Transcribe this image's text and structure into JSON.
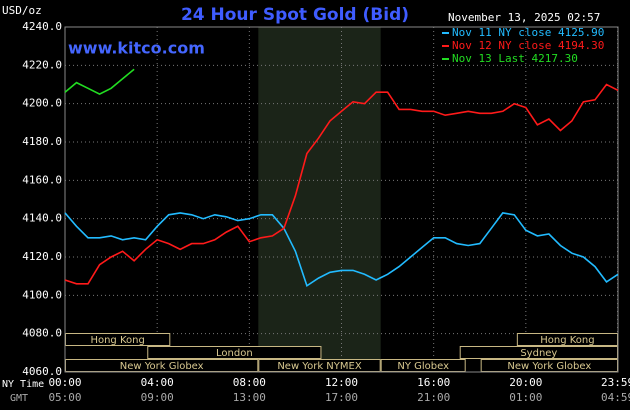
{
  "chart_data": {
    "type": "line",
    "title": "24 Hour Spot Gold (Bid)",
    "unit_label": "USD/oz",
    "timestamp": "November 13, 2025 02:57",
    "watermark": "www.kitco.com",
    "x_axis_labels": [
      "NY Time",
      "GMT"
    ],
    "x": [
      0,
      0.5,
      1,
      1.5,
      2,
      2.5,
      3,
      3.5,
      4,
      4.5,
      5,
      5.5,
      6,
      6.5,
      7,
      7.5,
      8,
      8.5,
      9,
      9.5,
      10,
      10.5,
      11,
      11.5,
      12,
      12.5,
      13,
      13.5,
      14,
      14.5,
      15,
      15.5,
      16,
      16.5,
      17,
      17.5,
      18,
      18.5,
      19,
      19.5,
      20,
      20.5,
      21,
      21.5,
      22,
      22.5,
      23,
      23.5,
      24
    ],
    "series": [
      {
        "name": "Nov 11 NY close 4125.90",
        "color": "#22bbff",
        "values": [
          4143,
          4136,
          4130,
          4130,
          4131,
          4129,
          4130,
          4129,
          4136,
          4142,
          4143,
          4142,
          4140,
          4142,
          4141,
          4139,
          4140,
          4142,
          4142,
          4135,
          4123,
          4105,
          4109,
          4112,
          4113,
          4113,
          4111,
          4108,
          4111,
          4115,
          4120,
          4125,
          4130,
          4130,
          4127,
          4126,
          4127,
          4135,
          4143,
          4142,
          4134,
          4131,
          4132,
          4126,
          4122,
          4120,
          4115,
          4107,
          4111
        ]
      },
      {
        "name": "Nov 12 NY close 4194.30",
        "color": "#ff1a1a",
        "values": [
          4108,
          4106,
          4106,
          4116,
          4120,
          4123,
          4118,
          4124,
          4129,
          4127,
          4124,
          4127,
          4127,
          4129,
          4133,
          4136,
          4128,
          4130,
          4131,
          4135,
          4152,
          4174,
          4182,
          4191,
          4196,
          4201,
          4200,
          4206,
          4206,
          4197,
          4197,
          4196,
          4196,
          4194,
          4195,
          4196,
          4195,
          4195,
          4196,
          4200,
          4198,
          4189,
          4192,
          4186,
          4191,
          4201,
          4202,
          4210,
          4207
        ]
      },
      {
        "name": "Nov 13 Last 4217.30",
        "color": "#22dd22",
        "values": [
          4206,
          4211,
          4208,
          4205,
          4208,
          4213,
          4218,
          null,
          null,
          null,
          null,
          null,
          null,
          null,
          null,
          null,
          null,
          null,
          null,
          null,
          null,
          null,
          null,
          null,
          null,
          null,
          null,
          null,
          null,
          null,
          null,
          null,
          null,
          null,
          null,
          null,
          null,
          null,
          null,
          null,
          null,
          null,
          null,
          null,
          null,
          null,
          null,
          null,
          null
        ]
      }
    ],
    "xlim": [
      0,
      24
    ],
    "xticks": [
      {
        "value": 0,
        "label": "00:00"
      },
      {
        "value": 4,
        "label": "04:00"
      },
      {
        "value": 8,
        "label": "08:00"
      },
      {
        "value": 12,
        "label": "12:00"
      },
      {
        "value": 16,
        "label": "16:00"
      },
      {
        "value": 20,
        "label": "20:00"
      },
      {
        "value": 23.98,
        "label": "23:59"
      }
    ],
    "gmt_labels": [
      "05:00",
      "09:00",
      "13:00",
      "17:00",
      "21:00",
      "01:00",
      "04:59"
    ],
    "ylim": [
      4060,
      4240
    ],
    "yticks": [
      {
        "value": 4060,
        "label": "4060.0"
      },
      {
        "value": 4080,
        "label": "4080.0"
      },
      {
        "value": 4100,
        "label": "4100.0"
      },
      {
        "value": 4120,
        "label": "4120.0"
      },
      {
        "value": 4140,
        "label": "4140.0"
      },
      {
        "value": 4160,
        "label": "4160.0"
      },
      {
        "value": 4180,
        "label": "4180.0"
      },
      {
        "value": 4200,
        "label": "4200.0"
      },
      {
        "value": 4220,
        "label": "4220.0"
      },
      {
        "value": 4240,
        "label": "4240.0"
      }
    ],
    "grid": true,
    "sessions": [
      {
        "label": "Hong Kong",
        "start": 0,
        "end": 4.57,
        "row": 0
      },
      {
        "label": "London",
        "start": 3.57,
        "end": 11.13,
        "row": 1
      },
      {
        "label": "New York Globex",
        "start": 0,
        "end": 8.39,
        "row": 2
      },
      {
        "label": "New York NYMEX",
        "start": 8.39,
        "end": 13.7,
        "row": 2,
        "shaded": true
      },
      {
        "label": "NY Globex",
        "start": 13.7,
        "end": 17.39,
        "row": 2
      },
      {
        "label": "Hong Kong",
        "start": 19.61,
        "end": 24,
        "row": 0
      },
      {
        "label": "Sydney",
        "start": 17.13,
        "end": 24,
        "row": 1
      },
      {
        "label": "New York Globex",
        "start": 18.04,
        "end": 24,
        "row": 2
      }
    ]
  }
}
